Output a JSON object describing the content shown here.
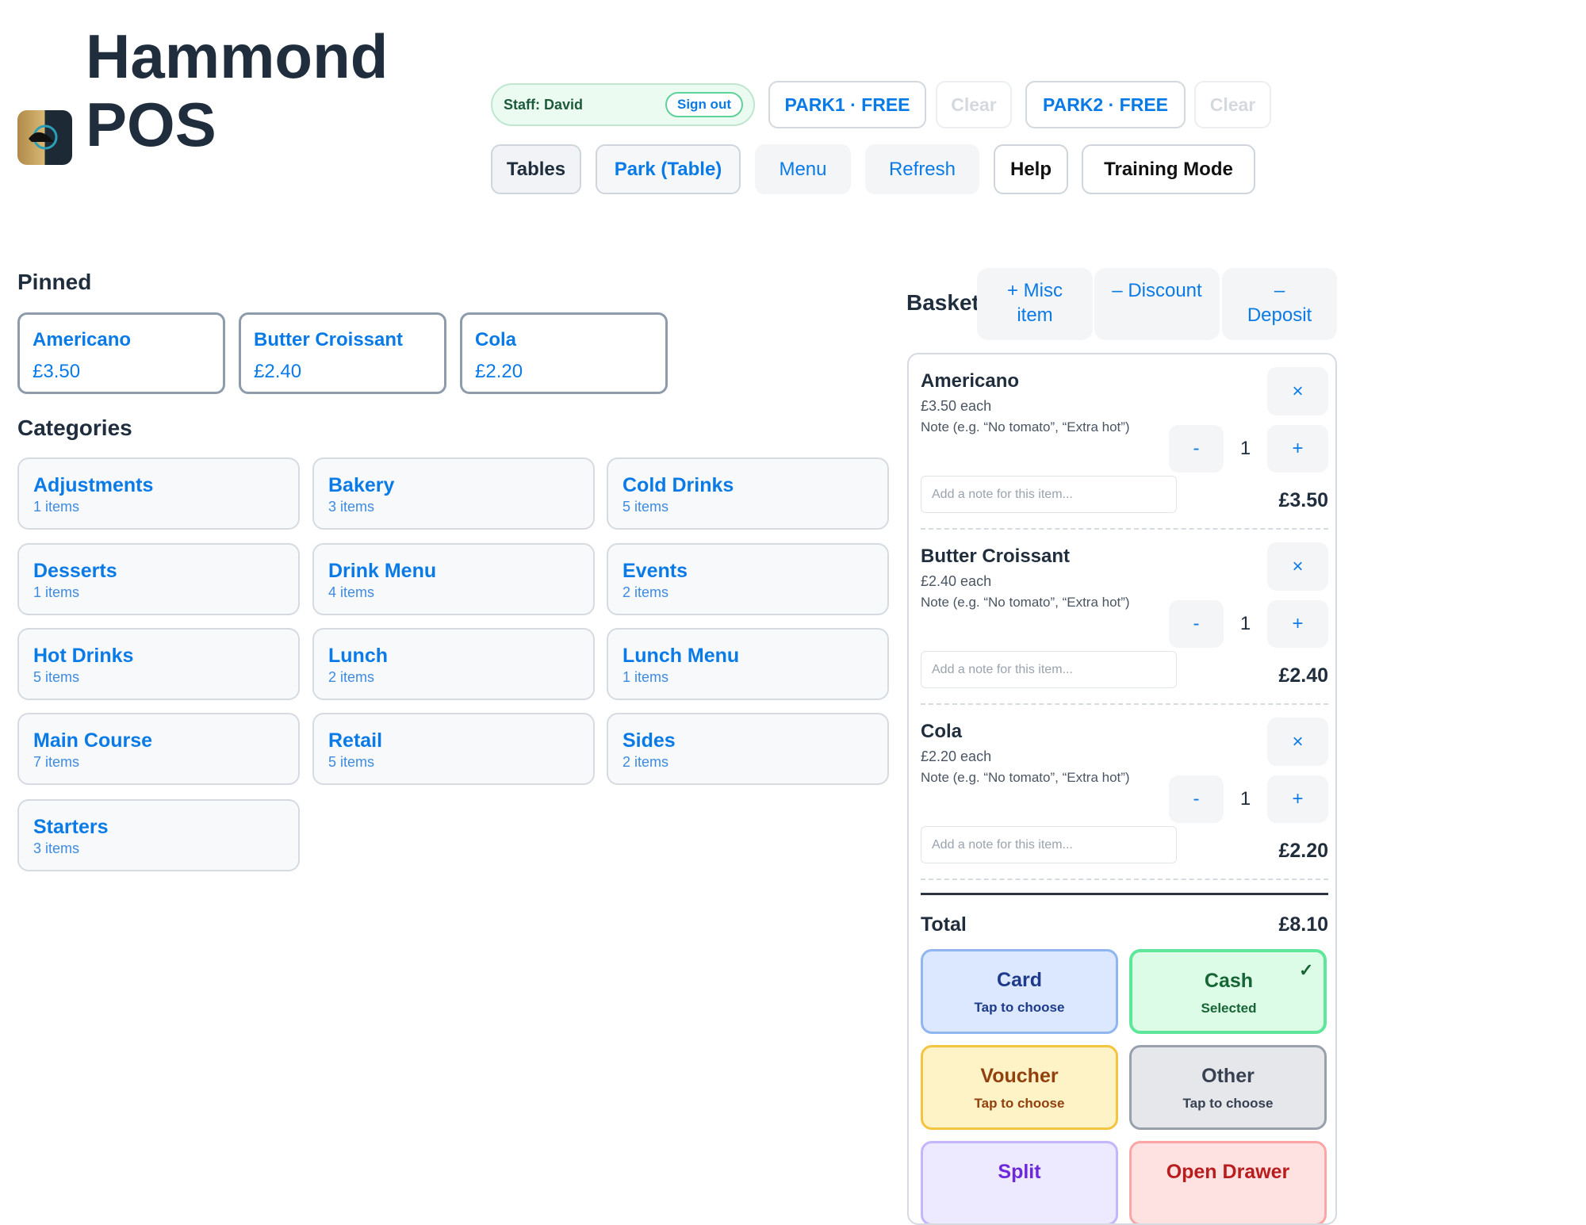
{
  "header": {
    "title": "Hammond POS"
  },
  "staff": {
    "label": "Staff: David",
    "sign_out": "Sign out"
  },
  "park_slots": [
    {
      "label": "PARK1 · FREE",
      "clear": "Clear"
    },
    {
      "label": "PARK2 · FREE",
      "clear": "Clear"
    }
  ],
  "nav": [
    "Tables",
    "Park (Table)",
    "Menu",
    "Refresh",
    "Help",
    "Training Mode"
  ],
  "pinned": {
    "heading": "Pinned",
    "items": [
      {
        "name": "Americano",
        "price": "£3.50"
      },
      {
        "name": "Butter Croissant",
        "price": "£2.40"
      },
      {
        "name": "Cola",
        "price": "£2.20"
      }
    ]
  },
  "categories": {
    "heading": "Categories",
    "items": [
      {
        "name": "Adjustments",
        "count": "1 items"
      },
      {
        "name": "Bakery",
        "count": "3 items"
      },
      {
        "name": "Cold Drinks",
        "count": "5 items"
      },
      {
        "name": "Desserts",
        "count": "1 items"
      },
      {
        "name": "Drink Menu",
        "count": "4 items"
      },
      {
        "name": "Events",
        "count": "2 items"
      },
      {
        "name": "Hot Drinks",
        "count": "5 items"
      },
      {
        "name": "Lunch",
        "count": "2 items"
      },
      {
        "name": "Lunch Menu",
        "count": "1 items"
      },
      {
        "name": "Main Course",
        "count": "7 items"
      },
      {
        "name": "Retail",
        "count": "5 items"
      },
      {
        "name": "Sides",
        "count": "2 items"
      },
      {
        "name": "Starters",
        "count": "3 items"
      }
    ]
  },
  "basket": {
    "heading": "Basket",
    "actions": [
      "+ Misc item",
      "– Discount",
      "– Deposit"
    ],
    "items": [
      {
        "name": "Americano",
        "each": "£3.50 each",
        "note_label": "Note (e.g. “No tomato”, “Extra hot”)",
        "note_placeholder": "Add a note for this item...",
        "remove": "×",
        "minus": "-",
        "qty": "1",
        "plus": "+",
        "line_total": "£3.50"
      },
      {
        "name": "Butter Croissant",
        "each": "£2.40 each",
        "note_label": "Note (e.g. “No tomato”, “Extra hot”)",
        "note_placeholder": "Add a note for this item...",
        "remove": "×",
        "minus": "-",
        "qty": "1",
        "plus": "+",
        "line_total": "£2.40"
      },
      {
        "name": "Cola",
        "each": "£2.20 each",
        "note_label": "Note (e.g. “No tomato”, “Extra hot”)",
        "note_placeholder": "Add a note for this item...",
        "remove": "×",
        "minus": "-",
        "qty": "1",
        "plus": "+",
        "line_total": "£2.20"
      }
    ],
    "total_label": "Total",
    "total": "£8.10",
    "payments": [
      {
        "name": "Card",
        "status": "Tap to choose"
      },
      {
        "name": "Cash",
        "status": "Selected",
        "check": "✓"
      },
      {
        "name": "Voucher",
        "status": "Tap to choose"
      },
      {
        "name": "Other",
        "status": "Tap to choose"
      },
      {
        "name": "Split"
      },
      {
        "name": "Open Drawer"
      }
    ]
  }
}
